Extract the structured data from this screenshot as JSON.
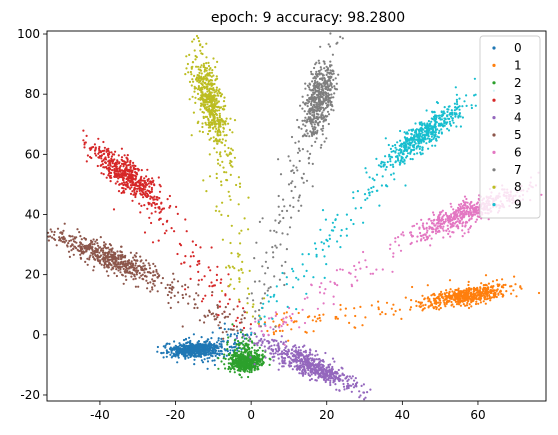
{
  "chart_data": {
    "type": "scatter",
    "title": "epoch:  9   accuracy: 98.2800",
    "xlabel": "",
    "ylabel": "",
    "xlim": [
      -54,
      78
    ],
    "ylim": [
      -22,
      101
    ],
    "xticks": [
      -40,
      -20,
      0,
      20,
      40,
      60
    ],
    "yticks": [
      -20,
      0,
      20,
      40,
      60,
      80,
      100
    ],
    "grid": false,
    "legend_position": "top-right",
    "series": [
      {
        "name": "0",
        "color": "#1f77b4",
        "center": [
          -15,
          -5
        ],
        "spread": [
          3.5,
          1.2
        ],
        "angle_deg": 0,
        "trail_from": [
          -2,
          -1
        ],
        "points": 600
      },
      {
        "name": "1",
        "color": "#ff7f0e",
        "center": [
          57,
          13
        ],
        "spread": [
          5.5,
          1.4
        ],
        "angle_deg": 13,
        "trail_from": [
          3,
          2
        ],
        "points": 600
      },
      {
        "name": "2",
        "color": "#2ca02c",
        "center": [
          -1.5,
          -9
        ],
        "spread": [
          1.6,
          2.2
        ],
        "angle_deg": 90,
        "trail_from": [
          -1,
          -3
        ],
        "points": 600
      },
      {
        "name": "3",
        "color": "#d62728",
        "center": [
          -33,
          53
        ],
        "spread": [
          6.5,
          2.0
        ],
        "angle_deg": -47,
        "trail_from": [
          -3,
          4
        ],
        "points": 600
      },
      {
        "name": "4",
        "color": "#9467bd",
        "center": [
          17,
          -11
        ],
        "spread": [
          6.5,
          1.5
        ],
        "angle_deg": -33,
        "trail_from": [
          2,
          -2
        ],
        "points": 600
      },
      {
        "name": "5",
        "color": "#8c564b",
        "center": [
          -38,
          26
        ],
        "spread": [
          8,
          1.8
        ],
        "angle_deg": -28,
        "trail_from": [
          -3,
          2
        ],
        "points": 600
      },
      {
        "name": "6",
        "color": "#e377c2",
        "center": [
          58,
          41
        ],
        "spread": [
          8,
          1.8
        ],
        "angle_deg": 27,
        "trail_from": [
          2,
          2
        ],
        "points": 600
      },
      {
        "name": "7",
        "color": "#7f7f7f",
        "center": [
          18,
          78
        ],
        "spread": [
          7,
          1.8
        ],
        "angle_deg": 80,
        "trail_from": [
          1,
          5
        ],
        "points": 600
      },
      {
        "name": "8",
        "color": "#bcbd22",
        "center": [
          -11,
          78
        ],
        "spread": [
          8,
          1.6
        ],
        "angle_deg": 102,
        "trail_from": [
          -1,
          5
        ],
        "points": 600
      },
      {
        "name": "9",
        "color": "#17becf",
        "center": [
          46,
          67
        ],
        "spread": [
          7,
          1.8
        ],
        "angle_deg": 45,
        "trail_from": [
          2,
          4
        ],
        "points": 600
      }
    ]
  }
}
